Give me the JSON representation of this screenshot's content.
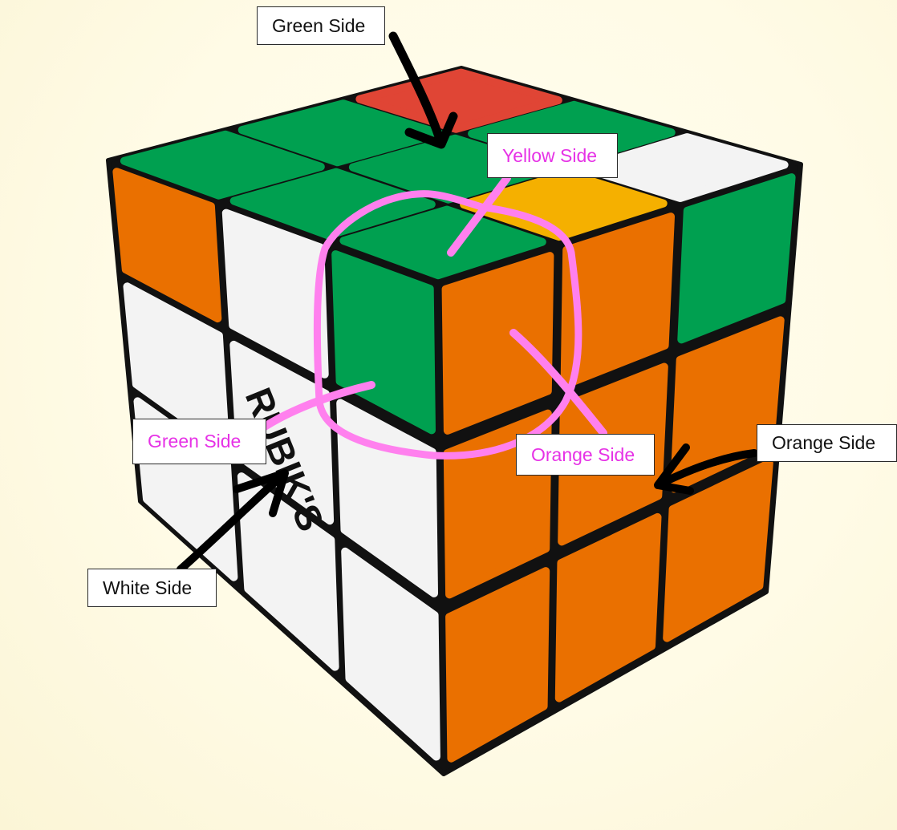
{
  "labels": {
    "green_side_top": "Green Side",
    "yellow_side": "Yellow Side",
    "green_side_left": "Green Side",
    "orange_side_center": "Orange Side",
    "orange_side_right": "Orange Side",
    "white_side": "White Side",
    "logo_text": "RUBIK'S"
  },
  "colors": {
    "cube_frame": "#111111",
    "green": "#00a050",
    "red": "#e04535",
    "orange": "#ea7000",
    "yellow": "#f5b000",
    "white": "#f3f3f3",
    "highlight_pink": "#ff80ee",
    "callout_pink_text": "#e632e6",
    "arrow_black": "#000000"
  },
  "stickers": {
    "top": [
      [
        "green",
        "green",
        "red"
      ],
      [
        "green",
        "green",
        "green"
      ],
      [
        "green",
        "yellow",
        "white"
      ]
    ],
    "left": [
      [
        "orange",
        "white",
        "green"
      ],
      [
        "white",
        "white",
        "white"
      ],
      [
        "white",
        "white",
        "white"
      ]
    ],
    "right": [
      [
        "orange",
        "orange",
        "green"
      ],
      [
        "orange",
        "orange",
        "orange"
      ],
      [
        "orange",
        "orange",
        "orange"
      ]
    ]
  }
}
